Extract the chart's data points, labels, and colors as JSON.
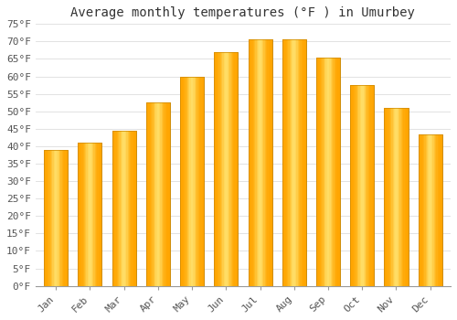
{
  "title": "Average monthly temperatures (°F ) in Umurbey",
  "months": [
    "Jan",
    "Feb",
    "Mar",
    "Apr",
    "May",
    "Jun",
    "Jul",
    "Aug",
    "Sep",
    "Oct",
    "Nov",
    "Dec"
  ],
  "values": [
    39,
    41,
    44.5,
    52.5,
    60,
    67,
    70.5,
    70.5,
    65.5,
    57.5,
    51,
    43.5
  ],
  "bar_color": "#FFA500",
  "bar_color_light": "#FFD966",
  "bar_edge_color": "#CC8800",
  "ylim": [
    0,
    75
  ],
  "yticks": [
    0,
    5,
    10,
    15,
    20,
    25,
    30,
    35,
    40,
    45,
    50,
    55,
    60,
    65,
    70,
    75
  ],
  "background_color": "#ffffff",
  "grid_color": "#dddddd",
  "title_fontsize": 10,
  "tick_fontsize": 8,
  "font_family": "monospace"
}
